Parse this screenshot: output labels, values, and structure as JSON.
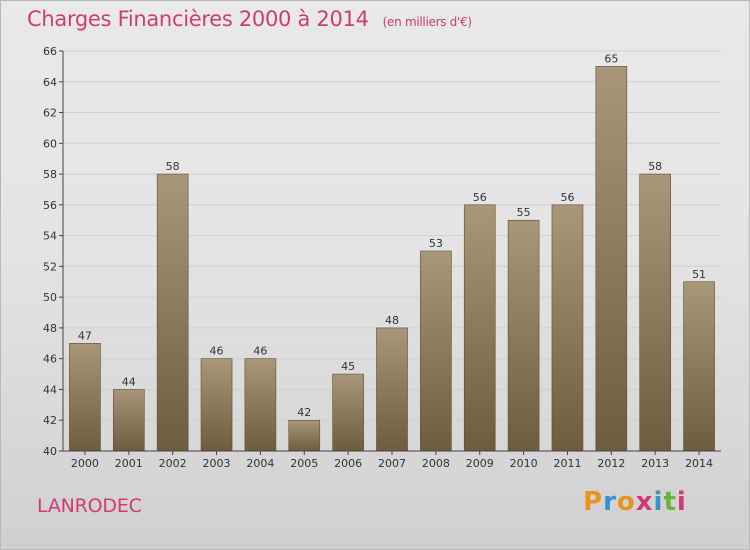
{
  "header": {
    "title": "Charges Financières 2000 à 2014",
    "unit": "(en milliers d'€)"
  },
  "footer": {
    "place_name": "LANRODEC",
    "logo_text": "Proxiti"
  },
  "colors": {
    "title": "#d23a73",
    "bar_top": "#a9977a",
    "bar_bottom": "#6e5c3f",
    "axis": "#444444",
    "grid": "#d0d0d0",
    "logo_letters": [
      "#e8931e",
      "#3a8fd0",
      "#e8931e",
      "#d23a73",
      "#3a8fd0",
      "#6bb43a",
      "#d23a73"
    ]
  },
  "chart_data": {
    "type": "bar",
    "categories": [
      "2000",
      "2001",
      "2002",
      "2003",
      "2004",
      "2005",
      "2006",
      "2007",
      "2008",
      "2009",
      "2010",
      "2011",
      "2012",
      "2013",
      "2014"
    ],
    "values": [
      47,
      44,
      58,
      46,
      46,
      42,
      45,
      48,
      53,
      56,
      55,
      56,
      65,
      58,
      51
    ],
    "data_labels": [
      "47",
      "44",
      "58",
      "46",
      "46",
      "42",
      "45",
      "48",
      "53",
      "56",
      "55",
      "56",
      "65",
      "58",
      "51"
    ],
    "yticks": [
      "40",
      "42",
      "44",
      "46",
      "48",
      "50",
      "52",
      "54",
      "56",
      "58",
      "60",
      "62",
      "64",
      "66"
    ],
    "ylim": [
      40,
      66
    ],
    "grid": true,
    "title": "Charges Financières 2000 à 2014",
    "xlabel": "",
    "ylabel": ""
  }
}
